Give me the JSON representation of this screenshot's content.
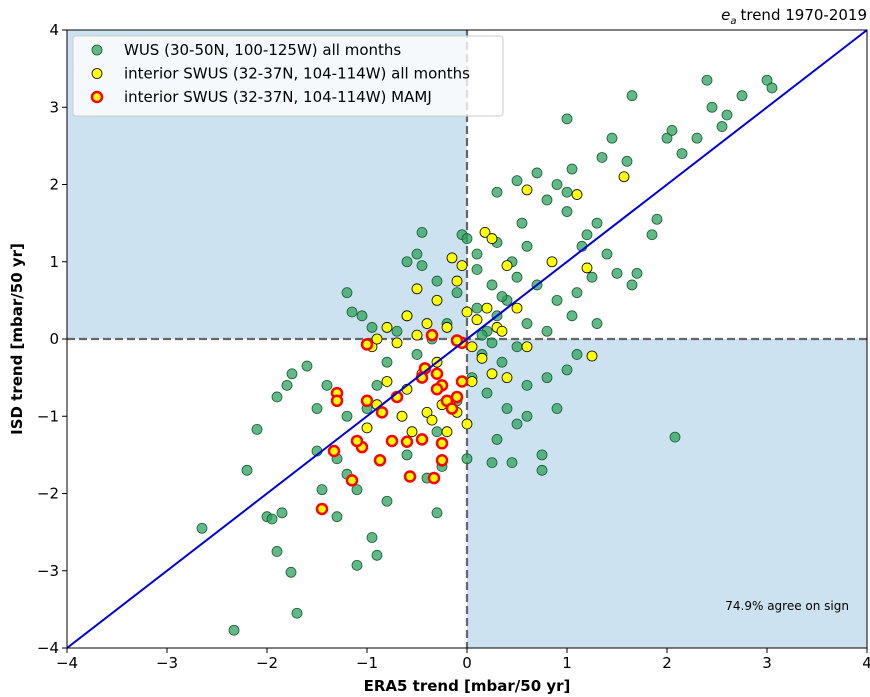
{
  "chart_data": {
    "type": "scatter",
    "title": {
      "symbol": "e",
      "subscript": "a",
      "text": "trend 1970-2019"
    },
    "xlabel": "ERA5 trend [mbar/50 yr]",
    "ylabel": "ISD trend [mbar/50 yr]",
    "annotation": "74.9% agree on sign",
    "xlim": [
      -4,
      4
    ],
    "ylim": [
      -4,
      4
    ],
    "xticks": [
      {
        "value": -4,
        "label": "−4"
      },
      {
        "value": -3,
        "label": "−3"
      },
      {
        "value": -2,
        "label": "−2"
      },
      {
        "value": -1,
        "label": "−1"
      },
      0,
      1,
      2,
      3,
      4
    ],
    "yticks": [
      {
        "value": -4,
        "label": "−4"
      },
      {
        "value": -3,
        "label": "−3"
      },
      {
        "value": -2,
        "label": "−2"
      },
      {
        "value": -1,
        "label": "−1"
      },
      0,
      1,
      2,
      3,
      4
    ],
    "legend": "upper left",
    "series": [
      {
        "name": "WUS (30-50N, 100-125W) all months",
        "color": "#2ca25f",
        "edgecolor": "#1a5c30",
        "x": [
          -2.33,
          -1.7,
          -2.65,
          -1.76,
          -1.9,
          -2.2,
          -2.1,
          -2.0,
          -1.95,
          -1.85,
          -1.1,
          -0.95,
          -0.9,
          -0.3,
          2.08,
          1.65,
          2.4,
          2.45,
          2.75,
          3.0,
          3.05,
          2.6,
          2.55,
          2.3,
          2.0,
          2.05,
          1.0,
          1.45,
          1.35,
          1.6,
          2.15,
          1.9,
          1.85,
          1.5,
          1.7,
          1.65,
          0.75,
          0.75,
          0.45,
          0.25,
          0.0,
          -0.25,
          0.5,
          0.6,
          0.3,
          -1.2,
          -1.15,
          -1.05,
          -0.95,
          -0.6,
          -0.5,
          -0.45,
          -0.3,
          -0.05,
          0.0,
          -0.45,
          0.3,
          0.5,
          0.7,
          0.9,
          1.0,
          1.05,
          0.8,
          1.0,
          1.3,
          1.4,
          1.15,
          1.25,
          1.1,
          1.05,
          0.9,
          0.7,
          0.5,
          0.4,
          0.3,
          0.2,
          0.1,
          0.15,
          0.35,
          0.5,
          0.6,
          0.8,
          0.25,
          0.45,
          0.6,
          0.1,
          -0.1,
          -0.2,
          -0.35,
          -0.5,
          -0.6,
          -0.7,
          -0.8,
          -0.9,
          -1.0,
          -1.2,
          -1.4,
          -1.5,
          -1.6,
          -1.75,
          -1.8,
          -1.9,
          -1.5,
          -1.3,
          -1.2,
          -1.1,
          -0.8,
          -0.6,
          -0.3,
          -0.1,
          0.05,
          0.2,
          0.4,
          0.6,
          0.8,
          1.0,
          1.1,
          1.3,
          0.9,
          -1.3,
          -1.45,
          -0.4,
          0.1,
          0.3,
          0.55,
          1.2,
          0.15,
          0.25,
          0.35
        ],
        "y": [
          -3.77,
          -3.55,
          -2.45,
          -3.02,
          -2.75,
          -1.7,
          -1.17,
          -2.3,
          -2.33,
          -2.25,
          -2.93,
          -2.57,
          -2.8,
          -2.25,
          -1.27,
          3.15,
          3.35,
          3.0,
          3.15,
          3.35,
          3.25,
          2.9,
          2.75,
          2.6,
          2.6,
          2.7,
          2.85,
          2.6,
          2.35,
          2.3,
          2.4,
          1.55,
          1.35,
          0.85,
          0.85,
          0.7,
          -1.5,
          -1.7,
          -1.6,
          -1.6,
          -1.55,
          -1.65,
          -1.1,
          -1.0,
          -1.3,
          0.6,
          0.35,
          0.3,
          0.15,
          1.0,
          1.1,
          0.95,
          0.75,
          1.35,
          1.3,
          1.38,
          1.9,
          2.05,
          2.15,
          2.0,
          1.9,
          2.2,
          1.8,
          1.65,
          1.5,
          1.1,
          1.2,
          0.8,
          0.6,
          0.3,
          0.5,
          0.7,
          0.8,
          0.5,
          0.3,
          0.1,
          0.4,
          -0.2,
          -0.3,
          -0.1,
          0.2,
          0.1,
          0.7,
          1.0,
          1.2,
          0.9,
          0.6,
          0.2,
          0.0,
          -0.2,
          0.3,
          0.1,
          -0.3,
          -0.6,
          -0.9,
          -1.0,
          -0.6,
          -0.9,
          -0.35,
          -0.45,
          -0.6,
          -0.75,
          -1.45,
          -1.55,
          -1.75,
          -1.95,
          -2.1,
          -1.5,
          -1.2,
          -0.8,
          -0.5,
          -0.7,
          -0.9,
          -0.6,
          -0.5,
          -0.4,
          -0.2,
          0.2,
          -0.9,
          -2.3,
          -1.95,
          -1.8,
          1.1,
          1.25,
          1.5,
          1.35,
          0.05,
          -0.05,
          0.55
        ]
      },
      {
        "name": "interior SWUS (32-37N, 104-114W) all months",
        "color": "#ffff00",
        "edgecolor": "#000000",
        "x": [
          0.6,
          1.57,
          1.1,
          0.18,
          0.25,
          -0.15,
          -0.05,
          0.4,
          0.85,
          1.2,
          -0.5,
          -0.3,
          -0.1,
          0.1,
          -0.5,
          -0.4,
          -0.2,
          0.0,
          0.05,
          0.15,
          0.3,
          0.35,
          0.2,
          -0.7,
          -0.8,
          -0.6,
          -0.45,
          -0.3,
          -0.25,
          -0.4,
          -0.55,
          -0.65,
          -0.7,
          -0.35,
          -0.1,
          0.0,
          -0.2,
          0.05,
          0.25,
          0.4,
          -0.9,
          -1.0,
          -0.95,
          -0.9,
          1.25,
          0.5,
          0.6,
          -0.8,
          -0.6
        ],
        "y": [
          1.93,
          2.1,
          1.87,
          1.38,
          1.3,
          1.05,
          0.95,
          0.95,
          1.0,
          0.92,
          0.65,
          0.5,
          0.75,
          0.25,
          0.05,
          0.2,
          0.15,
          0.35,
          -0.1,
          -0.25,
          0.15,
          0.1,
          0.4,
          -0.05,
          -0.55,
          -0.65,
          -0.45,
          -0.3,
          -0.85,
          -0.95,
          -1.2,
          -1.0,
          -0.75,
          -1.05,
          -0.95,
          -1.1,
          -1.2,
          -0.55,
          -0.45,
          -0.5,
          -0.85,
          -1.15,
          -0.1,
          0.0,
          -0.22,
          0.4,
          -0.1,
          0.15,
          0.3
        ]
      },
      {
        "name": "interior SWUS (32-37N, 104-114W) MAMJ",
        "color": "#ffff00",
        "edgecolor": "#ff0000",
        "x": [
          -1.45,
          -1.15,
          -0.87,
          -0.57,
          -0.25,
          -0.33,
          -1.33,
          -1.05,
          -1.1,
          -0.75,
          -0.45,
          -0.6,
          -0.25,
          -1.3,
          -1.3,
          -1.0,
          -0.85,
          -0.7,
          -0.45,
          -0.3,
          -0.25,
          -0.2,
          -0.15,
          -0.1,
          -0.05,
          -0.05,
          -0.35,
          -1.0,
          -0.42,
          -0.3,
          -0.1
        ],
        "y": [
          -2.2,
          -1.83,
          -1.57,
          -1.78,
          -1.57,
          -1.8,
          -1.45,
          -1.4,
          -1.32,
          -1.32,
          -1.3,
          -1.33,
          -1.35,
          -0.7,
          -0.8,
          -0.8,
          -0.95,
          -0.75,
          -0.5,
          -0.45,
          -0.6,
          -0.8,
          -0.9,
          -0.75,
          -0.55,
          -0.05,
          0.05,
          -0.07,
          -0.38,
          -0.65,
          -0.02
        ]
      }
    ]
  }
}
